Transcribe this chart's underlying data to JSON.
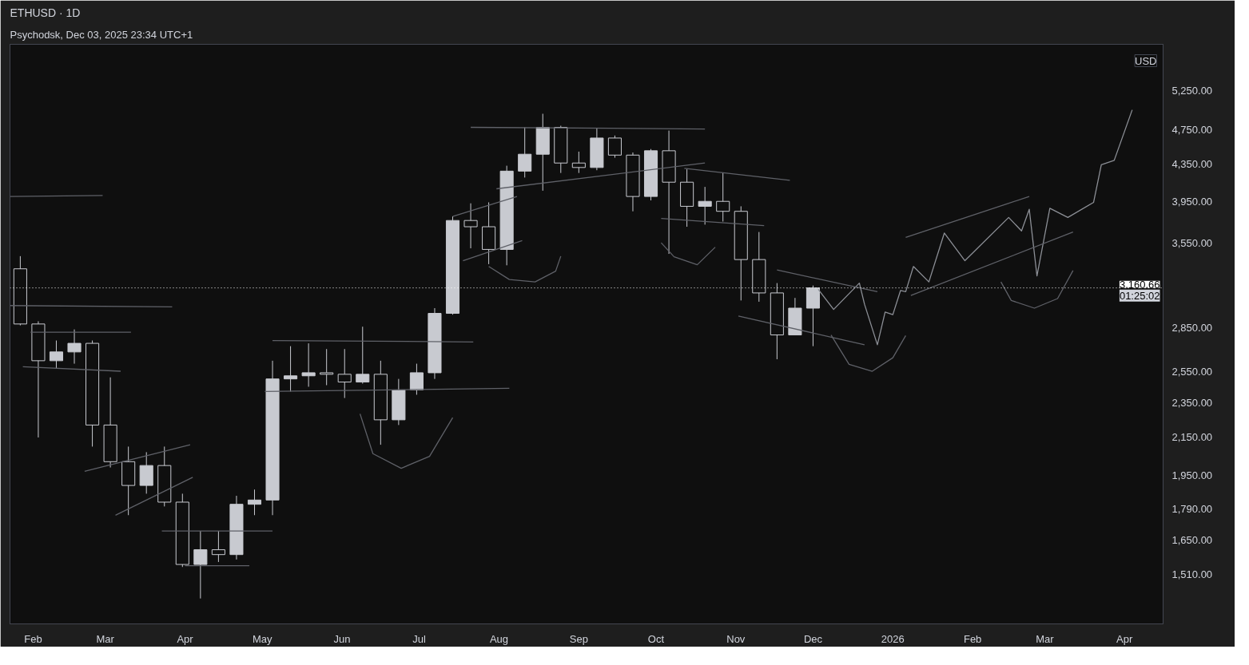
{
  "chart_data": {
    "type": "candlestick",
    "title": "ETHUSD · 1D",
    "subtitle": "Psychodsk, Dec 03, 2025 23:34 UTC+1",
    "ylabel": "USD",
    "color": "#c8cad0",
    "log": "y",
    "xlim": [
      "2025-01-23",
      "2026-04-16"
    ],
    "ylim": [
      1330,
      5920
    ],
    "xticks": [
      {
        "value": "2025-02-01",
        "label": "Feb"
      },
      {
        "value": "2025-03-01",
        "label": "Mar"
      },
      {
        "value": "2025-04-01",
        "label": "Apr"
      },
      {
        "value": "2025-05-01",
        "label": "May"
      },
      {
        "value": "2025-06-01",
        "label": "Jun"
      },
      {
        "value": "2025-07-01",
        "label": "Jul"
      },
      {
        "value": "2025-08-01",
        "label": "Aug"
      },
      {
        "value": "2025-09-01",
        "label": "Sep"
      },
      {
        "value": "2025-10-01",
        "label": "Oct"
      },
      {
        "value": "2025-11-01",
        "label": "Nov"
      },
      {
        "value": "2025-12-01",
        "label": "Dec"
      },
      {
        "value": "2026-01-01",
        "label": "2026"
      },
      {
        "value": "2026-02-01",
        "label": "Feb"
      },
      {
        "value": "2026-03-01",
        "label": "Mar"
      },
      {
        "value": "2026-04-01",
        "label": "Apr"
      }
    ],
    "yticks": [
      {
        "value": 1510,
        "label": "1,510.00"
      },
      {
        "value": 1650,
        "label": "1,650.00"
      },
      {
        "value": 1790,
        "label": "1,790.00"
      },
      {
        "value": 1950,
        "label": "1,950.00"
      },
      {
        "value": 2150,
        "label": "2,150.00"
      },
      {
        "value": 2350,
        "label": "2,350.00"
      },
      {
        "value": 2550,
        "label": "2,550.00"
      },
      {
        "value": 2850,
        "label": "2,850.00"
      },
      {
        "value": 3550,
        "label": "3,550.00"
      },
      {
        "value": 3950,
        "label": "3,950.00"
      },
      {
        "value": 4350,
        "label": "4,350.00"
      },
      {
        "value": 4750,
        "label": "4,750.00"
      },
      {
        "value": 5250,
        "label": "5,250.00"
      }
    ],
    "x": [
      "2025-01-27",
      "2025-02-03",
      "2025-02-10",
      "2025-02-17",
      "2025-02-24",
      "2025-03-03",
      "2025-03-10",
      "2025-03-17",
      "2025-03-24",
      "2025-03-31",
      "2025-04-07",
      "2025-04-14",
      "2025-04-21",
      "2025-04-28",
      "2025-05-05",
      "2025-05-12",
      "2025-05-19",
      "2025-05-26",
      "2025-06-02",
      "2025-06-09",
      "2025-06-16",
      "2025-06-23",
      "2025-06-30",
      "2025-07-07",
      "2025-07-14",
      "2025-07-21",
      "2025-07-28",
      "2025-08-04",
      "2025-08-11",
      "2025-08-18",
      "2025-08-25",
      "2025-09-01",
      "2025-09-08",
      "2025-09-15",
      "2025-09-22",
      "2025-09-29",
      "2025-10-06",
      "2025-10-13",
      "2025-10-20",
      "2025-10-27",
      "2025-11-03",
      "2025-11-10",
      "2025-11-17",
      "2025-11-24",
      "2025-12-01"
    ],
    "ohlc": [
      [
        3320,
        3430,
        2870,
        2880
      ],
      [
        2880,
        2900,
        2150,
        2620
      ],
      [
        2620,
        2760,
        2570,
        2680
      ],
      [
        2680,
        2840,
        2600,
        2740
      ],
      [
        2740,
        2760,
        2100,
        2220
      ],
      [
        2220,
        2510,
        1990,
        2020
      ],
      [
        2020,
        2100,
        1760,
        1900
      ],
      [
        1900,
        2070,
        1860,
        2000
      ],
      [
        2000,
        2100,
        1800,
        1820
      ],
      [
        1820,
        1860,
        1540,
        1550
      ],
      [
        1550,
        1690,
        1420,
        1610
      ],
      [
        1610,
        1690,
        1560,
        1590
      ],
      [
        1590,
        1850,
        1570,
        1810
      ],
      [
        1810,
        1880,
        1760,
        1830
      ],
      [
        1830,
        2620,
        1760,
        2500
      ],
      [
        2500,
        2720,
        2420,
        2520
      ],
      [
        2520,
        2740,
        2450,
        2540
      ],
      [
        2540,
        2700,
        2460,
        2530
      ],
      [
        2530,
        2700,
        2380,
        2480
      ],
      [
        2480,
        2860,
        2470,
        2530
      ],
      [
        2530,
        2620,
        2110,
        2250
      ],
      [
        2250,
        2500,
        2220,
        2430
      ],
      [
        2430,
        2600,
        2400,
        2540
      ],
      [
        2540,
        3000,
        2500,
        2960
      ],
      [
        2960,
        3800,
        2950,
        3760
      ],
      [
        3760,
        3930,
        3500,
        3700
      ],
      [
        3700,
        3940,
        3360,
        3490
      ],
      [
        3490,
        4330,
        3350,
        4270
      ],
      [
        4270,
        4780,
        4200,
        4460
      ],
      [
        4460,
        4950,
        4060,
        4780
      ],
      [
        4780,
        4800,
        4250,
        4360
      ],
      [
        4360,
        4490,
        4250,
        4310
      ],
      [
        4310,
        4770,
        4280,
        4650
      ],
      [
        4650,
        4680,
        4420,
        4450
      ],
      [
        4450,
        4480,
        3850,
        4000
      ],
      [
        4000,
        4520,
        3960,
        4500
      ],
      [
        4500,
        4740,
        3450,
        4150
      ],
      [
        4150,
        4290,
        3700,
        3900
      ],
      [
        3900,
        4100,
        3720,
        3950
      ],
      [
        3950,
        4250,
        3750,
        3850
      ],
      [
        3850,
        3900,
        3060,
        3400
      ],
      [
        3400,
        3650,
        3050,
        3120
      ],
      [
        3120,
        3200,
        2630,
        2800
      ],
      [
        2800,
        3080,
        2800,
        3000
      ],
      [
        3000,
        3180,
        2720,
        3160.66
      ]
    ],
    "series": [
      {
        "type": "line",
        "color": "#8c8f96",
        "x": [
          "2025-12-03",
          "2025-12-09",
          "2025-12-19",
          "2025-12-21",
          "2025-12-26",
          "2025-12-29",
          "2026-01-01",
          "2026-01-04",
          "2026-01-06",
          "2026-01-09",
          "2026-01-15",
          "2026-01-21",
          "2026-01-29",
          "2026-02-15",
          "2026-02-20",
          "2026-02-23",
          "2026-02-26",
          "2026-03-03",
          "2026-03-10",
          "2026-03-20",
          "2026-03-23",
          "2026-03-28",
          "2026-04-04"
        ],
        "values": [
          3150,
          2990,
          3200,
          3030,
          2730,
          2970,
          2950,
          3140,
          3130,
          3340,
          3210,
          3640,
          3390,
          3790,
          3660,
          3870,
          3260,
          3880,
          3790,
          3940,
          4340,
          4390,
          5000
        ]
      },
      {
        "type": "line",
        "color": "#5f6168",
        "x": [
          "2025-01-23",
          "2025-02-28"
        ],
        "values": [
          4000,
          4010
        ]
      },
      {
        "type": "line",
        "color": "#5f6168",
        "x": [
          "2025-01-23",
          "2025-03-27"
        ],
        "values": [
          3020,
          3010
        ]
      },
      {
        "type": "line",
        "color": "#5f6168",
        "x": [
          "2025-01-31",
          "2025-03-11"
        ],
        "values": [
          2820,
          2820
        ]
      },
      {
        "type": "line",
        "color": "#5f6168",
        "x": [
          "2025-01-28",
          "2025-03-07"
        ],
        "values": [
          2580,
          2550
        ]
      },
      {
        "type": "line",
        "color": "#5f6168",
        "x": [
          "2025-02-21",
          "2025-04-03"
        ],
        "values": [
          1970,
          2110
        ]
      },
      {
        "type": "line",
        "color": "#5f6168",
        "x": [
          "2025-03-05",
          "2025-04-04"
        ],
        "values": [
          1760,
          1940
        ]
      },
      {
        "type": "line",
        "color": "#5f6168",
        "x": [
          "2025-03-23",
          "2025-05-05"
        ],
        "values": [
          1690,
          1690
        ]
      },
      {
        "type": "line",
        "color": "#5f6168",
        "x": [
          "2025-04-01",
          "2025-04-26"
        ],
        "values": [
          1545,
          1545
        ]
      },
      {
        "type": "line",
        "color": "#5f6168",
        "x": [
          "2025-05-05",
          "2025-07-22"
        ],
        "values": [
          2760,
          2750
        ]
      },
      {
        "type": "line",
        "color": "#5f6168",
        "x": [
          "2025-05-02",
          "2025-08-05"
        ],
        "values": [
          2420,
          2440
        ]
      },
      {
        "type": "line",
        "color": "#5f6168",
        "x": [
          "2025-07-14",
          "2025-08-08"
        ],
        "values": [
          3800,
          4000
        ]
      },
      {
        "type": "line",
        "color": "#5f6168",
        "x": [
          "2025-07-18",
          "2025-08-10"
        ],
        "values": [
          3390,
          3570
        ]
      },
      {
        "type": "line",
        "color": "#5f6168",
        "x": [
          "2025-07-31",
          "2025-10-20"
        ],
        "values": [
          4080,
          4360
        ]
      },
      {
        "type": "line",
        "color": "#5f6168",
        "x": [
          "2025-07-21",
          "2025-10-20"
        ],
        "values": [
          4780,
          4760
        ]
      },
      {
        "type": "line",
        "color": "#5f6168",
        "x": [
          "2025-10-12",
          "2025-11-22"
        ],
        "values": [
          4300,
          4170
        ]
      },
      {
        "type": "line",
        "color": "#5f6168",
        "x": [
          "2025-10-03",
          "2025-11-12"
        ],
        "values": [
          3780,
          3710
        ]
      },
      {
        "type": "line",
        "color": "#5f6168",
        "x": [
          "2025-11-17",
          "2025-12-26"
        ],
        "values": [
          3310,
          3130
        ]
      },
      {
        "type": "line",
        "color": "#5f6168",
        "x": [
          "2025-11-02",
          "2025-12-21"
        ],
        "values": [
          2940,
          2730
        ]
      },
      {
        "type": "line",
        "color": "#5f6168",
        "x": [
          "2026-01-06",
          "2026-02-23"
        ],
        "values": [
          3600,
          4000
        ]
      },
      {
        "type": "line",
        "color": "#5f6168",
        "x": [
          "2026-01-08",
          "2026-03-12"
        ],
        "values": [
          3100,
          3650
        ]
      },
      {
        "type": "line",
        "color": "#5f6168",
        "x": [
          "2025-06-08",
          "2025-06-13",
          "2025-06-24",
          "2025-07-05",
          "2025-07-14"
        ],
        "values": [
          2285,
          2062,
          1986,
          2048,
          2263
        ]
      },
      {
        "type": "line",
        "color": "#5f6168",
        "x": [
          "2025-07-28",
          "2025-08-05",
          "2025-08-15",
          "2025-08-23",
          "2025-08-25"
        ],
        "values": [
          3340,
          3230,
          3210,
          3300,
          3430
        ]
      },
      {
        "type": "line",
        "color": "#5f6168",
        "x": [
          "2025-10-03",
          "2025-10-08",
          "2025-10-17",
          "2025-10-24"
        ],
        "values": [
          3550,
          3425,
          3355,
          3510
        ]
      },
      {
        "type": "line",
        "color": "#5f6168",
        "x": [
          "2025-12-08",
          "2025-12-15",
          "2025-12-24",
          "2026-01-01",
          "2026-01-06"
        ],
        "values": [
          2800,
          2596,
          2550,
          2640,
          2795
        ]
      },
      {
        "type": "line",
        "color": "#5f6168",
        "x": [
          "2026-02-12",
          "2026-02-16",
          "2026-02-25",
          "2026-03-06",
          "2026-03-12"
        ],
        "values": [
          3210,
          3060,
          3000,
          3075,
          3305
        ]
      }
    ],
    "ref_lines": [
      {
        "axis": "y",
        "value": 3160.66,
        "label": "3,160.66",
        "color": "#ffffff",
        "line_style": "dotted"
      }
    ],
    "annotations": [
      "01:25:02"
    ]
  }
}
